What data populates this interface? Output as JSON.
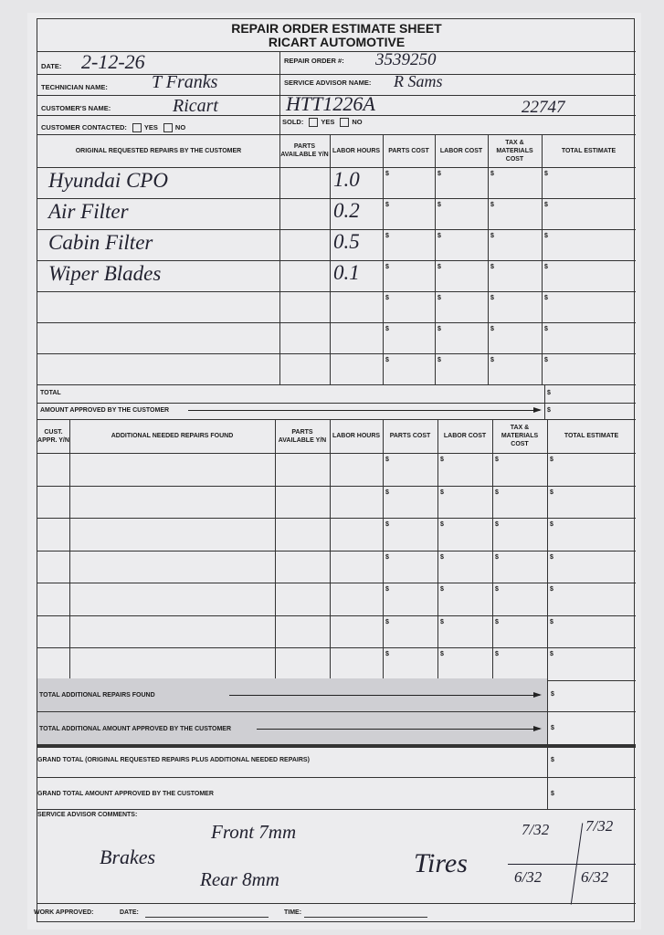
{
  "header": {
    "title": "REPAIR ORDER ESTIMATE SHEET",
    "company": "RICART AUTOMOTIVE"
  },
  "fields": {
    "date_label": "DATE:",
    "date_value": "2-12-26",
    "repair_order_label": "REPAIR ORDER #:",
    "repair_order_value": "3539250",
    "technician_label": "TECHNICIAN NAME:",
    "technician_value": "T Franks",
    "advisor_label": "SERVICE ADVISOR NAME:",
    "advisor_value": "R Sams",
    "customer_label": "CUSTOMER'S NAME:",
    "customer_value": "Ricart",
    "vehicle_value": "HTT1226A",
    "mileage_value": "22747",
    "contacted_label": "CUSTOMER CONTACTED:",
    "sold_label": "SOLD:",
    "yes": "YES",
    "no": "NO"
  },
  "original": {
    "headers": [
      "ORIGINAL REQUESTED REPAIRS BY THE CUSTOMER",
      "PARTS AVAILABLE Y/N",
      "LABOR HOURS",
      "PARTS COST",
      "LABOR COST",
      "TAX & MATERIALS COST",
      "TOTAL ESTIMATE"
    ],
    "rows": [
      {
        "repair": "Hyundai CPO",
        "hours": "1.0"
      },
      {
        "repair": "Air Filter",
        "hours": "0.2"
      },
      {
        "repair": "Cabin Filter",
        "hours": "0.5"
      },
      {
        "repair": "Wiper Blades",
        "hours": "0.1"
      },
      {
        "repair": "",
        "hours": ""
      },
      {
        "repair": "",
        "hours": ""
      },
      {
        "repair": "",
        "hours": ""
      }
    ],
    "total_label": "TOTAL",
    "approved_label": "AMOUNT APPROVED BY THE CUSTOMER"
  },
  "additional": {
    "headers": [
      "CUST. APPR. Y/N",
      "ADDITIONAL NEEDED REPAIRS FOUND",
      "PARTS AVAILABLE Y/N",
      "LABOR HOURS",
      "PARTS COST",
      "LABOR COST",
      "TAX & MATERIALS COST",
      "TOTAL ESTIMATE"
    ],
    "row_count": 7
  },
  "totals": {
    "total_additional": "TOTAL ADDITIONAL REPAIRS FOUND",
    "total_additional_approved": "TOTAL ADDITIONAL AMOUNT APPROVED BY THE CUSTOMER",
    "grand_total": "GRAND TOTAL",
    "grand_total_note": "(Original requested repairs plus additional needed repairs)",
    "grand_total_approved": "GRAND TOTAL AMOUNT APPROVED BY THE CUSTOMER",
    "currency": "$"
  },
  "comments": {
    "label": "SERVICE ADVISOR COMMENTS:",
    "brakes": "Brakes",
    "front": "Front 7mm",
    "rear": "Rear 8mm",
    "tires": "Tires",
    "tire_lf": "7/32",
    "tire_rf": "7/32",
    "tire_lr": "6/32",
    "tire_rr": "6/32"
  },
  "footer": {
    "work_approved": "WORK APPROVED:",
    "date": "DATE:",
    "time": "TIME:"
  }
}
